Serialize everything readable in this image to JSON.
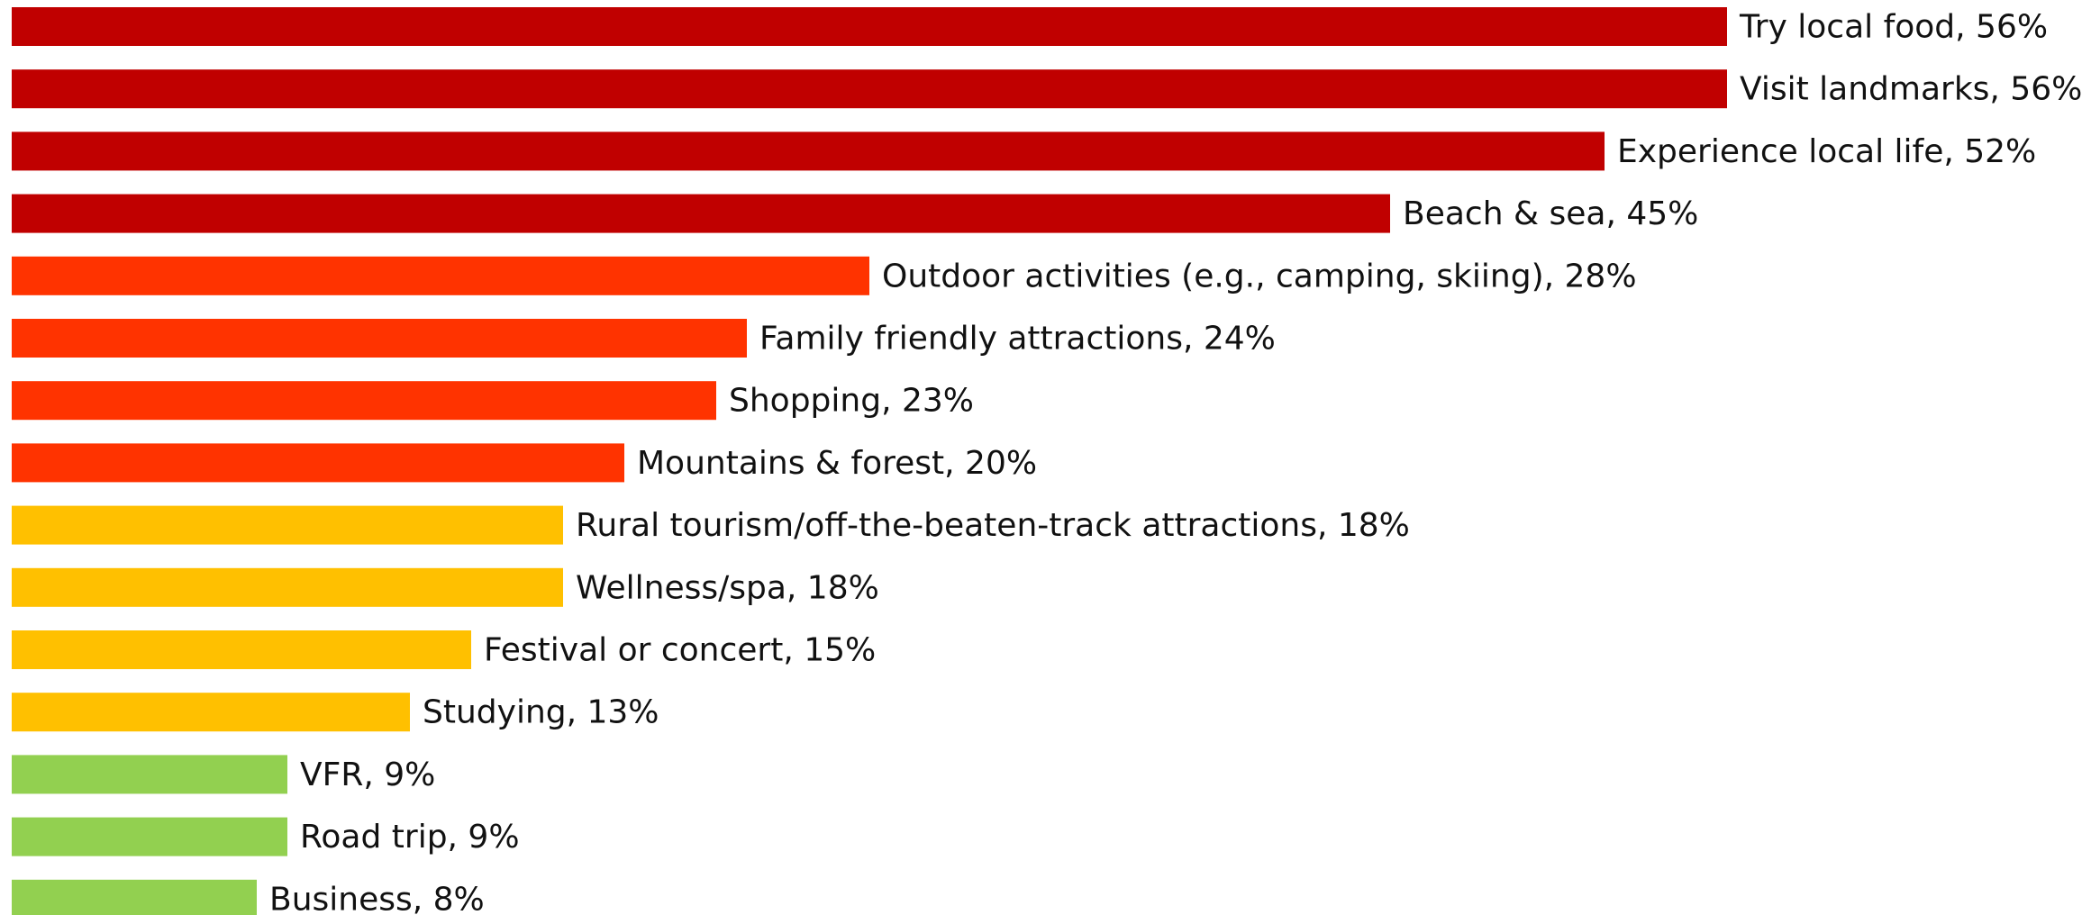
{
  "chart_data": {
    "type": "bar",
    "orientation": "horizontal",
    "title": "",
    "xlabel": "",
    "ylabel": "",
    "grid": false,
    "legend": "none",
    "xlim": [
      0,
      56
    ],
    "unit": "%",
    "categories": [
      "Try local food",
      "Visit landmarks",
      "Experience local life",
      "Beach & sea",
      "Outdoor activities (e.g., camping, skiing)",
      "Family friendly attractions",
      "Shopping",
      "Mountains & forest",
      "Rural tourism/off-the-beaten-track attractions",
      "Wellness/spa",
      "Festival or concert",
      "Studying",
      "VFR",
      "Road trip",
      "Business"
    ],
    "values": [
      56,
      56,
      52,
      45,
      28,
      24,
      23,
      20,
      18,
      18,
      15,
      13,
      9,
      9,
      8
    ],
    "labels": [
      "Try local food, 56%",
      "Visit landmarks, 56%",
      "Experience local life, 52%",
      "Beach & sea, 45%",
      "Outdoor activities (e.g., camping, skiing), 28%",
      "Family friendly attractions, 24%",
      "Shopping, 23%",
      "Mountains & forest, 20%",
      "Rural tourism/off-the-beaten-track attractions, 18%",
      "Wellness/spa, 18%",
      "Festival or concert, 15%",
      "Studying, 13%",
      "VFR, 9%",
      "Road trip, 9%",
      "Business, 8%"
    ],
    "colors": [
      "#c00000",
      "#c00000",
      "#c00000",
      "#c00000",
      "#ff3300",
      "#ff3300",
      "#ff3300",
      "#ff3300",
      "#ffc000",
      "#ffc000",
      "#ffc000",
      "#ffc000",
      "#92d050",
      "#92d050",
      "#92d050"
    ]
  }
}
